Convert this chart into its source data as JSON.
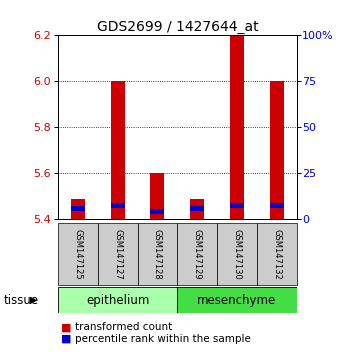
{
  "title": "GDS2699 / 1427644_at",
  "samples": [
    "GSM147125",
    "GSM147127",
    "GSM147128",
    "GSM147129",
    "GSM147130",
    "GSM147132"
  ],
  "red_values": [
    5.49,
    6.0,
    5.6,
    5.49,
    6.2,
    6.0
  ],
  "blue_values": [
    5.435,
    5.448,
    5.425,
    5.435,
    5.448,
    5.448
  ],
  "red_base": 5.4,
  "ylim_min": 5.4,
  "ylim_max": 6.2,
  "yticks_left": [
    5.4,
    5.6,
    5.8,
    6.0,
    6.2
  ],
  "yticks_right_pct": [
    0,
    25,
    50,
    75,
    100
  ],
  "yticks_right_labels": [
    "0",
    "25",
    "50",
    "75",
    "100%"
  ],
  "epi_color": "#aaffaa",
  "mes_color": "#44dd44",
  "bar_width": 0.35,
  "red_color": "#cc0000",
  "blue_color": "#0000cc",
  "blue_bar_height": 0.022,
  "sample_bg_color": "#cccccc",
  "font_size_title": 10,
  "font_size_ticks": 8,
  "font_size_sample": 6,
  "font_size_group": 8.5,
  "font_size_legend": 7.5
}
